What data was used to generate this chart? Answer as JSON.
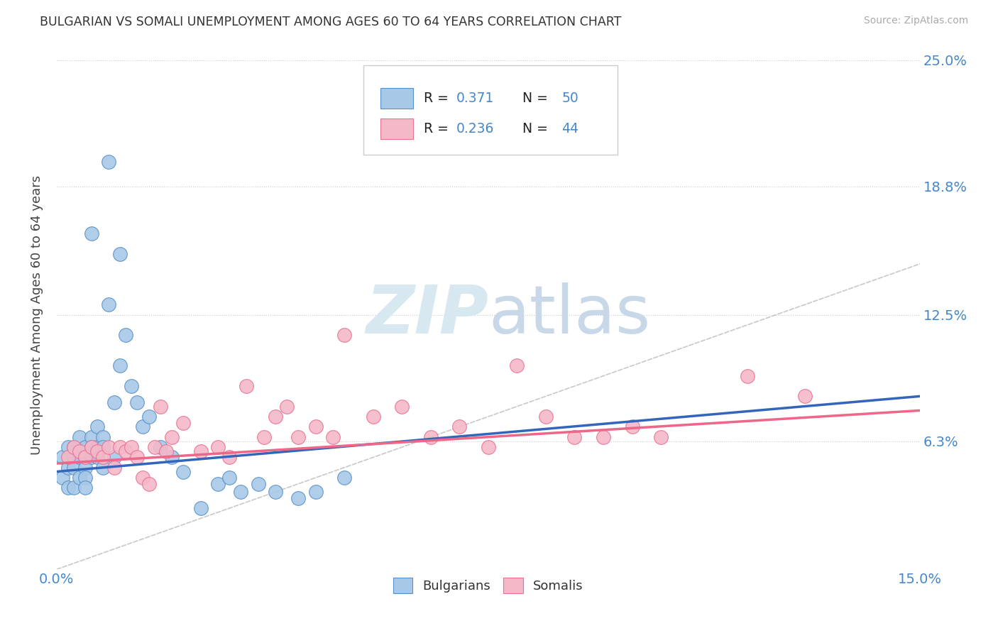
{
  "title": "BULGARIAN VS SOMALI UNEMPLOYMENT AMONG AGES 60 TO 64 YEARS CORRELATION CHART",
  "source": "Source: ZipAtlas.com",
  "ylabel": "Unemployment Among Ages 60 to 64 years",
  "xlim": [
    0,
    0.15
  ],
  "ylim": [
    0,
    0.25
  ],
  "xticks": [
    0.0,
    0.025,
    0.05,
    0.075,
    0.1,
    0.125,
    0.15
  ],
  "ytick_positions": [
    0.063,
    0.125,
    0.188,
    0.25
  ],
  "ytick_labels": [
    "6.3%",
    "12.5%",
    "18.8%",
    "25.0%"
  ],
  "bulgarian_fill": "#a8c8e8",
  "somali_fill": "#f4b8c8",
  "bulgarian_edge": "#5590c8",
  "somali_edge": "#e87090",
  "bulgarian_line": "#3366bb",
  "somali_line": "#ee6688",
  "diagonal_color": "#bbbbbb",
  "watermark_color": "#d8e8f0",
  "bulgarians_x": [
    0.001,
    0.001,
    0.002,
    0.002,
    0.002,
    0.003,
    0.003,
    0.003,
    0.003,
    0.004,
    0.004,
    0.004,
    0.005,
    0.005,
    0.005,
    0.005,
    0.005,
    0.006,
    0.006,
    0.006,
    0.006,
    0.007,
    0.007,
    0.007,
    0.008,
    0.008,
    0.008,
    0.009,
    0.009,
    0.01,
    0.01,
    0.011,
    0.011,
    0.012,
    0.013,
    0.014,
    0.015,
    0.016,
    0.018,
    0.02,
    0.022,
    0.025,
    0.028,
    0.03,
    0.032,
    0.035,
    0.038,
    0.042,
    0.045,
    0.05
  ],
  "bulgarians_y": [
    0.055,
    0.045,
    0.06,
    0.05,
    0.04,
    0.055,
    0.06,
    0.05,
    0.04,
    0.065,
    0.055,
    0.045,
    0.06,
    0.055,
    0.05,
    0.045,
    0.04,
    0.065,
    0.06,
    0.055,
    0.165,
    0.07,
    0.06,
    0.055,
    0.065,
    0.06,
    0.05,
    0.2,
    0.13,
    0.082,
    0.055,
    0.155,
    0.1,
    0.115,
    0.09,
    0.082,
    0.07,
    0.075,
    0.06,
    0.055,
    0.048,
    0.03,
    0.042,
    0.045,
    0.038,
    0.042,
    0.038,
    0.035,
    0.038,
    0.045
  ],
  "somalis_x": [
    0.002,
    0.003,
    0.004,
    0.005,
    0.006,
    0.007,
    0.008,
    0.009,
    0.01,
    0.011,
    0.012,
    0.013,
    0.014,
    0.015,
    0.016,
    0.017,
    0.018,
    0.019,
    0.02,
    0.022,
    0.025,
    0.028,
    0.03,
    0.033,
    0.036,
    0.038,
    0.04,
    0.042,
    0.045,
    0.048,
    0.05,
    0.055,
    0.06,
    0.065,
    0.07,
    0.075,
    0.08,
    0.085,
    0.09,
    0.095,
    0.1,
    0.105,
    0.12,
    0.13
  ],
  "somalis_y": [
    0.055,
    0.06,
    0.058,
    0.055,
    0.06,
    0.058,
    0.055,
    0.06,
    0.05,
    0.06,
    0.058,
    0.06,
    0.055,
    0.045,
    0.042,
    0.06,
    0.08,
    0.058,
    0.065,
    0.072,
    0.058,
    0.06,
    0.055,
    0.09,
    0.065,
    0.075,
    0.08,
    0.065,
    0.07,
    0.065,
    0.115,
    0.075,
    0.08,
    0.065,
    0.07,
    0.06,
    0.1,
    0.075,
    0.065,
    0.065,
    0.07,
    0.065,
    0.095,
    0.085
  ],
  "bulg_trend_x0": 0.0,
  "bulg_trend_y0": 0.048,
  "bulg_trend_x1": 0.15,
  "bulg_trend_y1": 0.085,
  "som_trend_x0": 0.0,
  "som_trend_y0": 0.052,
  "som_trend_x1": 0.15,
  "som_trend_y1": 0.078
}
